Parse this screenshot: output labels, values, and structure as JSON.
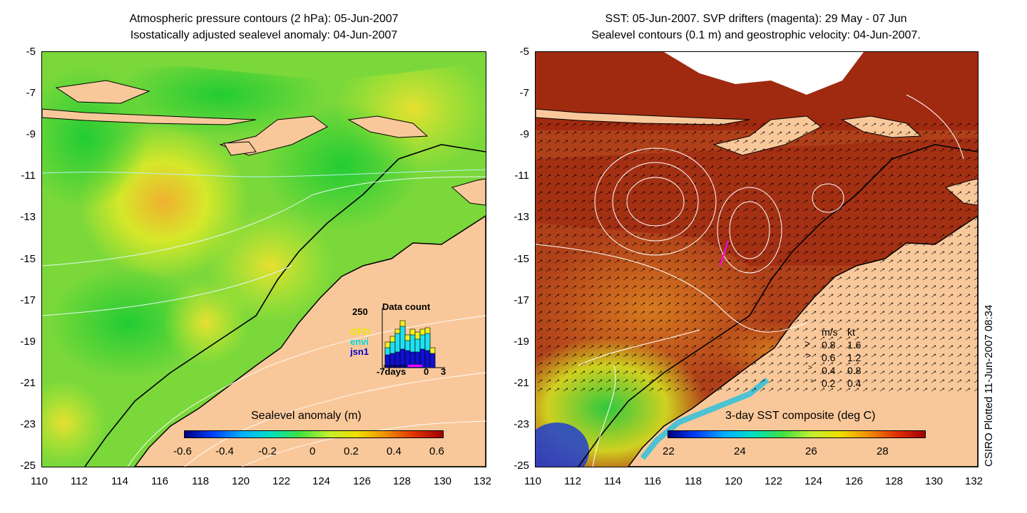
{
  "left_panel": {
    "title_line1": "Atmospheric pressure contours (2 hPa): 05-Jun-2007",
    "title_line2": "Isostatically adjusted sealevel anomaly: 04-Jun-2007",
    "y_ticks": [
      "-5",
      "-7",
      "-9",
      "-11",
      "-13",
      "-15",
      "-17",
      "-19",
      "-21",
      "-23",
      "-25"
    ],
    "x_ticks": [
      "110",
      "112",
      "114",
      "116",
      "118",
      "120",
      "122",
      "124",
      "126",
      "128",
      "130",
      "132"
    ],
    "colorbar": {
      "label": "Sealevel anomaly (m)",
      "ticks": [
        "-0.6",
        "-0.4",
        "-0.2",
        "0",
        "0.2",
        "0.4",
        "0.6"
      ],
      "range": [
        -0.6,
        0.6
      ]
    },
    "data_count": {
      "title": "Data count",
      "max_label": "250",
      "x_labels": [
        "-7days",
        "0",
        "3"
      ],
      "legend": [
        {
          "name": "GFO",
          "color": "#e8e800"
        },
        {
          "name": "envi",
          "color": "#00e8e8"
        },
        {
          "name": "jsn1",
          "color": "#0000cc"
        }
      ]
    }
  },
  "right_panel": {
    "title_line1": "SST: 05-Jun-2007. SVP drifters (magenta): 29 May - 07 Jun",
    "title_line2": "Sealevel contours (0.1 m) and geostrophic velocity: 04-Jun-2007.",
    "y_ticks": [
      "-5",
      "-7",
      "-9",
      "-11",
      "-13",
      "-15",
      "-17",
      "-19",
      "-21",
      "-23",
      "-25"
    ],
    "x_ticks": [
      "110",
      "112",
      "114",
      "116",
      "118",
      "120",
      "122",
      "124",
      "126",
      "128",
      "130",
      "132"
    ],
    "colorbar": {
      "label": "3-day SST composite (deg C)",
      "ticks": [
        "22",
        "24",
        "26",
        "28"
      ],
      "range": [
        21.5,
        29.5
      ]
    },
    "velocity_legend": {
      "header_ms": "m/s",
      "header_kt": "kt",
      "rows": [
        {
          "ms": "0.8",
          "kt": "1.6"
        },
        {
          "ms": "0.6",
          "kt": "1.2"
        },
        {
          "ms": "0.4",
          "kt": "0.8"
        },
        {
          "ms": "0.2",
          "kt": "0.4"
        }
      ]
    }
  },
  "footer": {
    "credit": "CSIRO Plotted 11-Jun-2007 08:34"
  },
  "colors": {
    "land": "#f9c89a",
    "sla_green": "#33d633",
    "sla_yellow": "#ccee33",
    "sst_red": "#b03010",
    "sst_dark": "#8a1a08"
  }
}
